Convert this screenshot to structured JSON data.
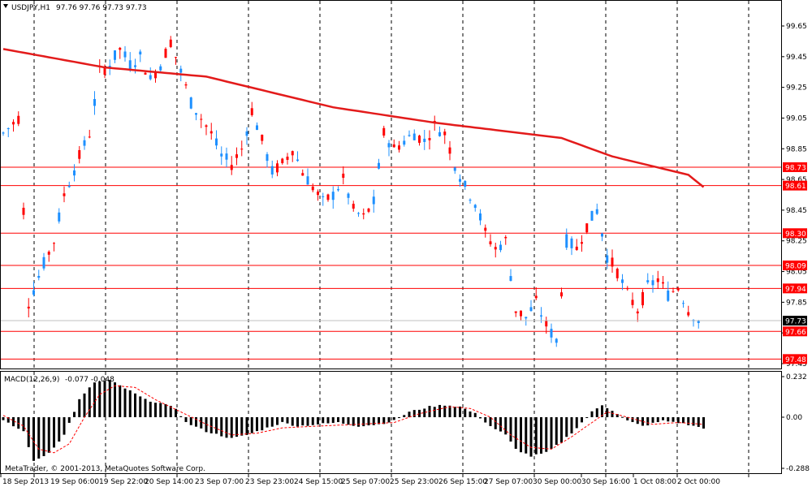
{
  "header": {
    "symbol_label": "USDJPY,H1",
    "ohlc_text": "97.76 97.76 97.73 97.73"
  },
  "macd_header": {
    "label": "MACD(12,26,9)",
    "values_text": "-0.077 -0.048"
  },
  "copyright": "MetaTrader, © 2001-2013, MetaQuotes Software Corp.",
  "colors": {
    "background": "#ffffff",
    "bull_candle": "#1e90ff",
    "bear_candle": "#ff0000",
    "moving_average": "#e31b1b",
    "level_line": "#ff0000",
    "grid": "#000000",
    "histogram": "#000000",
    "signal_line": "#ff0000",
    "current_price_box": "#000000"
  },
  "chart_data": [
    {
      "type": "candlestick",
      "title": "USDJPY,H1",
      "ylim": [
        97.45,
        99.75
      ],
      "y_ticks": [
        "99.65",
        "99.45",
        "99.25",
        "99.05",
        "98.85",
        "98.65",
        "98.45",
        "98.25",
        "98.05",
        "97.85",
        "97.65",
        "97.45"
      ],
      "x_ticks": [
        "18 Sep 2013",
        "19 Sep 06:00",
        "19 Sep 22:00",
        "20 Sep 14:00",
        "23 Sep 07:00",
        "23 Sep 23:00",
        "24 Sep 15:00",
        "25 Sep 07:00",
        "25 Sep 23:00",
        "26 Sep 15:00",
        "27 Sep 07:00",
        "30 Sep 00:00",
        "30 Sep 16:00",
        "1 Oct 08:00",
        "2 Oct 00:00"
      ],
      "current_price": "97.73",
      "horizontal_levels": [
        "98.73",
        "98.61",
        "98.30",
        "98.09",
        "97.94",
        "97.66",
        "97.48"
      ],
      "close_path": [
        [
          0,
          98.95
        ],
        [
          3,
          99.05
        ],
        [
          5,
          97.85
        ],
        [
          8,
          98.1
        ],
        [
          10,
          98.25
        ],
        [
          12,
          98.55
        ],
        [
          15,
          98.8
        ],
        [
          17,
          98.95
        ],
        [
          19,
          99.35
        ],
        [
          21,
          99.4
        ],
        [
          23,
          99.5
        ],
        [
          25,
          99.4
        ],
        [
          27,
          99.45
        ],
        [
          29,
          99.3
        ],
        [
          31,
          99.4
        ],
        [
          33,
          99.55
        ],
        [
          35,
          99.35
        ],
        [
          37,
          99.15
        ],
        [
          39,
          99.05
        ],
        [
          41,
          98.95
        ],
        [
          43,
          98.8
        ],
        [
          45,
          98.75
        ],
        [
          47,
          98.85
        ],
        [
          49,
          99.1
        ],
        [
          51,
          98.9
        ],
        [
          53,
          98.7
        ],
        [
          55,
          98.75
        ],
        [
          57,
          98.85
        ],
        [
          59,
          98.7
        ],
        [
          61,
          98.6
        ],
        [
          63,
          98.5
        ],
        [
          65,
          98.55
        ],
        [
          67,
          98.65
        ],
        [
          69,
          98.45
        ],
        [
          71,
          98.4
        ],
        [
          73,
          98.5
        ],
        [
          75,
          98.95
        ],
        [
          77,
          98.85
        ],
        [
          79,
          98.9
        ],
        [
          81,
          98.95
        ],
        [
          83,
          98.9
        ],
        [
          85,
          99.0
        ],
        [
          87,
          98.95
        ],
        [
          89,
          98.75
        ],
        [
          91,
          98.6
        ],
        [
          93,
          98.5
        ],
        [
          95,
          98.3
        ],
        [
          97,
          98.2
        ],
        [
          99,
          98.25
        ],
        [
          101,
          97.8
        ],
        [
          103,
          97.75
        ],
        [
          105,
          97.85
        ],
        [
          107,
          97.7
        ],
        [
          109,
          97.6
        ],
        [
          111,
          98.25
        ],
        [
          113,
          98.2
        ],
        [
          115,
          98.35
        ],
        [
          117,
          98.45
        ],
        [
          119,
          98.15
        ],
        [
          121,
          98.05
        ],
        [
          123,
          97.9
        ],
        [
          125,
          97.8
        ],
        [
          127,
          97.95
        ],
        [
          129,
          98.0
        ],
        [
          131,
          97.9
        ],
        [
          133,
          97.95
        ],
        [
          135,
          97.8
        ],
        [
          137,
          97.73
        ]
      ],
      "moving_average": [
        [
          0,
          99.5
        ],
        [
          20,
          99.38
        ],
        [
          40,
          99.32
        ],
        [
          55,
          99.2
        ],
        [
          65,
          99.12
        ],
        [
          75,
          99.07
        ],
        [
          85,
          99.02
        ],
        [
          100,
          98.96
        ],
        [
          110,
          98.92
        ],
        [
          120,
          98.8
        ],
        [
          130,
          98.72
        ],
        [
          135,
          98.68
        ],
        [
          138,
          98.6
        ]
      ]
    },
    {
      "type": "bar",
      "title": "MACD(12,26,9)",
      "ylim": [
        -0.288,
        0.232
      ],
      "y_ticks": [
        "0.232",
        "0.00",
        "-0.288"
      ],
      "histogram_path": [
        [
          0,
          -0.02
        ],
        [
          4,
          -0.08
        ],
        [
          6,
          -0.25
        ],
        [
          9,
          -0.2
        ],
        [
          12,
          -0.1
        ],
        [
          15,
          0.1
        ],
        [
          18,
          0.2
        ],
        [
          21,
          0.21
        ],
        [
          25,
          0.15
        ],
        [
          28,
          0.1
        ],
        [
          31,
          0.08
        ],
        [
          34,
          0.05
        ],
        [
          36,
          -0.03
        ],
        [
          40,
          -0.08
        ],
        [
          45,
          -0.12
        ],
        [
          48,
          -0.1
        ],
        [
          52,
          -0.06
        ],
        [
          55,
          -0.03
        ],
        [
          58,
          -0.05
        ],
        [
          62,
          -0.04
        ],
        [
          66,
          -0.03
        ],
        [
          70,
          -0.05
        ],
        [
          74,
          -0.04
        ],
        [
          77,
          -0.02
        ],
        [
          80,
          0.03
        ],
        [
          84,
          0.06
        ],
        [
          87,
          0.07
        ],
        [
          90,
          0.06
        ],
        [
          93,
          0.02
        ],
        [
          96,
          -0.05
        ],
        [
          99,
          -0.1
        ],
        [
          101,
          -0.18
        ],
        [
          104,
          -0.22
        ],
        [
          107,
          -0.2
        ],
        [
          110,
          -0.14
        ],
        [
          113,
          -0.06
        ],
        [
          116,
          0.03
        ],
        [
          118,
          0.07
        ],
        [
          120,
          0.04
        ],
        [
          123,
          -0.02
        ],
        [
          126,
          -0.05
        ],
        [
          130,
          -0.02
        ],
        [
          133,
          -0.03
        ],
        [
          136,
          -0.05
        ],
        [
          138,
          -0.06
        ]
      ],
      "signal_path": [
        [
          0,
          0.01
        ],
        [
          4,
          -0.05
        ],
        [
          7,
          -0.18
        ],
        [
          10,
          -0.2
        ],
        [
          13,
          -0.15
        ],
        [
          16,
          0.0
        ],
        [
          19,
          0.13
        ],
        [
          22,
          0.18
        ],
        [
          26,
          0.17
        ],
        [
          30,
          0.1
        ],
        [
          35,
          0.03
        ],
        [
          40,
          -0.04
        ],
        [
          45,
          -0.1
        ],
        [
          50,
          -0.09
        ],
        [
          55,
          -0.06
        ],
        [
          62,
          -0.05
        ],
        [
          70,
          -0.04
        ],
        [
          77,
          -0.03
        ],
        [
          82,
          0.02
        ],
        [
          88,
          0.06
        ],
        [
          92,
          0.05
        ],
        [
          96,
          0.0
        ],
        [
          100,
          -0.1
        ],
        [
          104,
          -0.17
        ],
        [
          108,
          -0.18
        ],
        [
          112,
          -0.11
        ],
        [
          116,
          -0.03
        ],
        [
          119,
          0.03
        ],
        [
          123,
          0.0
        ],
        [
          128,
          -0.04
        ],
        [
          133,
          -0.03
        ],
        [
          138,
          -0.04
        ]
      ]
    }
  ]
}
